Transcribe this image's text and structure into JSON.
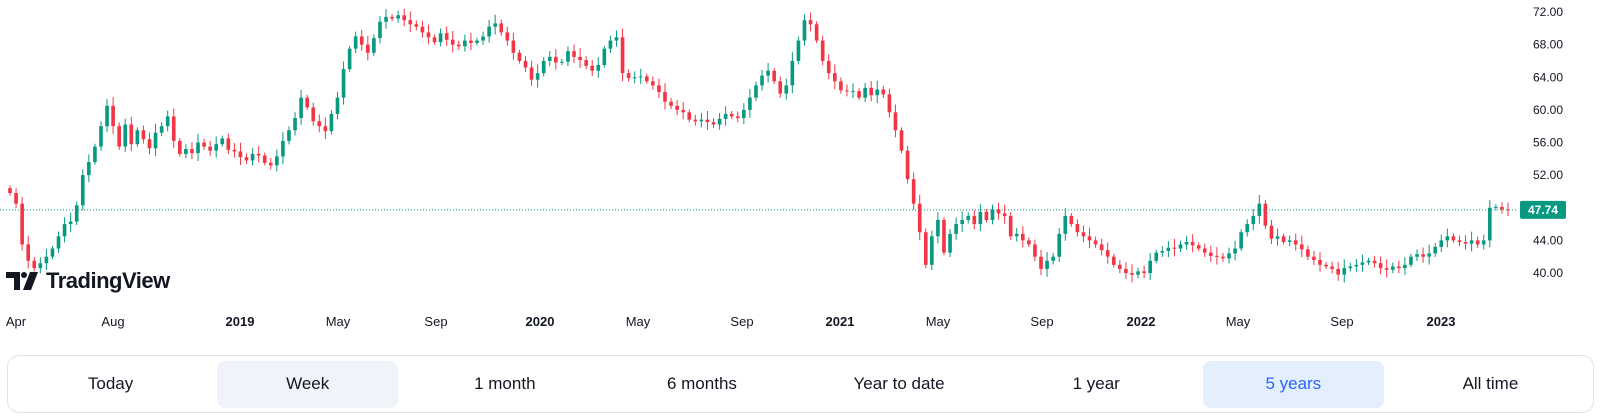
{
  "chart_data": {
    "type": "candlestick",
    "interval": "week",
    "x_tick_labels": [
      {
        "label": "Apr",
        "year_marker": false
      },
      {
        "label": "Aug",
        "year_marker": false
      },
      {
        "label": "2019",
        "year_marker": true
      },
      {
        "label": "May",
        "year_marker": false
      },
      {
        "label": "Sep",
        "year_marker": false
      },
      {
        "label": "2020",
        "year_marker": true
      },
      {
        "label": "May",
        "year_marker": false
      },
      {
        "label": "Sep",
        "year_marker": false
      },
      {
        "label": "2021",
        "year_marker": true
      },
      {
        "label": "May",
        "year_marker": false
      },
      {
        "label": "Sep",
        "year_marker": false
      },
      {
        "label": "2022",
        "year_marker": true
      },
      {
        "label": "May",
        "year_marker": false
      },
      {
        "label": "Sep",
        "year_marker": false
      },
      {
        "label": "2023",
        "year_marker": true
      }
    ],
    "y_tick_labels": [
      "72.00",
      "68.00",
      "64.00",
      "60.00",
      "56.00",
      "52.00",
      "48.00",
      "44.00",
      "40.00"
    ],
    "ylim": [
      39,
      73.5
    ],
    "last_price": "47.74",
    "colors": {
      "up": "#089981",
      "down": "#f23645",
      "price_line": "#089981"
    },
    "close_series": [
      49.8,
      48.5,
      43.5,
      41.5,
      40.6,
      41.2,
      42.0,
      43.0,
      44.5,
      46.0,
      46.3,
      48.3,
      52.0,
      53.6,
      55.5,
      58.0,
      60.5,
      58.0,
      55.5,
      58.2,
      55.8,
      57.5,
      56.4,
      55.3,
      57.2,
      58.0,
      59.2,
      56.2,
      54.6,
      55.2,
      54.7,
      56.0,
      55.5,
      55.0,
      55.8,
      56.5,
      55.1,
      54.9,
      54.2,
      53.8,
      54.6,
      54.4,
      53.5,
      53.2,
      54.3,
      56.2,
      57.5,
      59.0,
      61.5,
      60.3,
      58.6,
      58.0,
      57.4,
      59.5,
      61.5,
      65.0,
      67.5,
      69.0,
      68.0,
      67.0,
      68.8,
      70.8,
      71.4,
      71.2,
      71.6,
      71.0,
      70.5,
      70.2,
      69.5,
      68.9,
      68.3,
      69.4,
      68.6,
      68.0,
      67.8,
      68.5,
      68.2,
      68.5,
      69.0,
      70.2,
      70.6,
      69.5,
      68.5,
      67.0,
      66.0,
      65.2,
      63.7,
      64.5,
      66.0,
      66.5,
      65.8,
      65.9,
      67.2,
      66.5,
      66.1,
      65.4,
      64.8,
      65.5,
      67.5,
      68.5,
      68.9,
      64.5,
      63.9,
      64.0,
      64.1,
      63.5,
      63.0,
      62.2,
      61.0,
      60.5,
      60.0,
      59.7,
      58.8,
      58.6,
      58.8,
      58.5,
      58.2,
      58.9,
      59.5,
      59.2,
      59.0,
      60.0,
      61.5,
      63.0,
      64.2,
      64.8,
      63.5,
      62.0,
      63.0,
      66.0,
      68.5,
      71.0,
      70.5,
      68.5,
      66.0,
      64.5,
      63.5,
      62.4,
      62.3,
      62.3,
      61.5,
      62.7,
      61.8,
      62.5,
      61.9,
      59.7,
      57.5,
      55.0,
      51.5,
      48.5,
      45.0,
      41.0,
      44.5,
      46.5,
      42.5,
      44.8,
      46.0,
      46.5,
      47.0,
      46.0,
      47.5,
      46.5,
      47.8,
      47.3,
      47.0,
      44.5,
      44.8,
      44.0,
      43.5,
      42.0,
      40.5,
      41.5,
      42.0,
      44.8,
      47.0,
      46.0,
      45.0,
      44.5,
      44.0,
      43.5,
      42.8,
      42.0,
      41.0,
      40.5,
      40.0,
      39.8,
      40.2,
      40.0,
      41.5,
      42.5,
      42.7,
      43.1,
      43.0,
      43.5,
      43.8,
      43.4,
      43.0,
      42.5,
      42.1,
      42.0,
      41.8,
      42.4,
      43.0,
      45.0,
      46.0,
      47.0,
      48.5,
      45.8,
      44.2,
      44.5,
      43.8,
      44.0,
      43.5,
      42.9,
      42.0,
      41.6,
      41.0,
      40.8,
      40.5,
      39.8,
      40.6,
      40.8,
      41.0,
      41.3,
      41.5,
      41.2,
      40.6,
      40.4,
      40.8,
      40.6,
      41.0,
      42.0,
      42.3,
      42.0,
      42.4,
      43.2,
      44.0,
      44.5,
      44.0,
      43.8,
      43.6,
      44.0,
      43.5,
      44.0,
      48.0,
      48.1,
      47.8,
      47.74
    ],
    "price_line": true
  },
  "logo": {
    "text": "TradingView",
    "icon": "tradingview-logo-icon"
  },
  "range_buttons": [
    {
      "label": "Today",
      "state": "normal"
    },
    {
      "label": "Week",
      "state": "hovered"
    },
    {
      "label": "1 month",
      "state": "normal"
    },
    {
      "label": "6 months",
      "state": "normal"
    },
    {
      "label": "Year to date",
      "state": "normal"
    },
    {
      "label": "1 year",
      "state": "normal"
    },
    {
      "label": "5 years",
      "state": "active"
    },
    {
      "label": "All time",
      "state": "normal"
    }
  ]
}
